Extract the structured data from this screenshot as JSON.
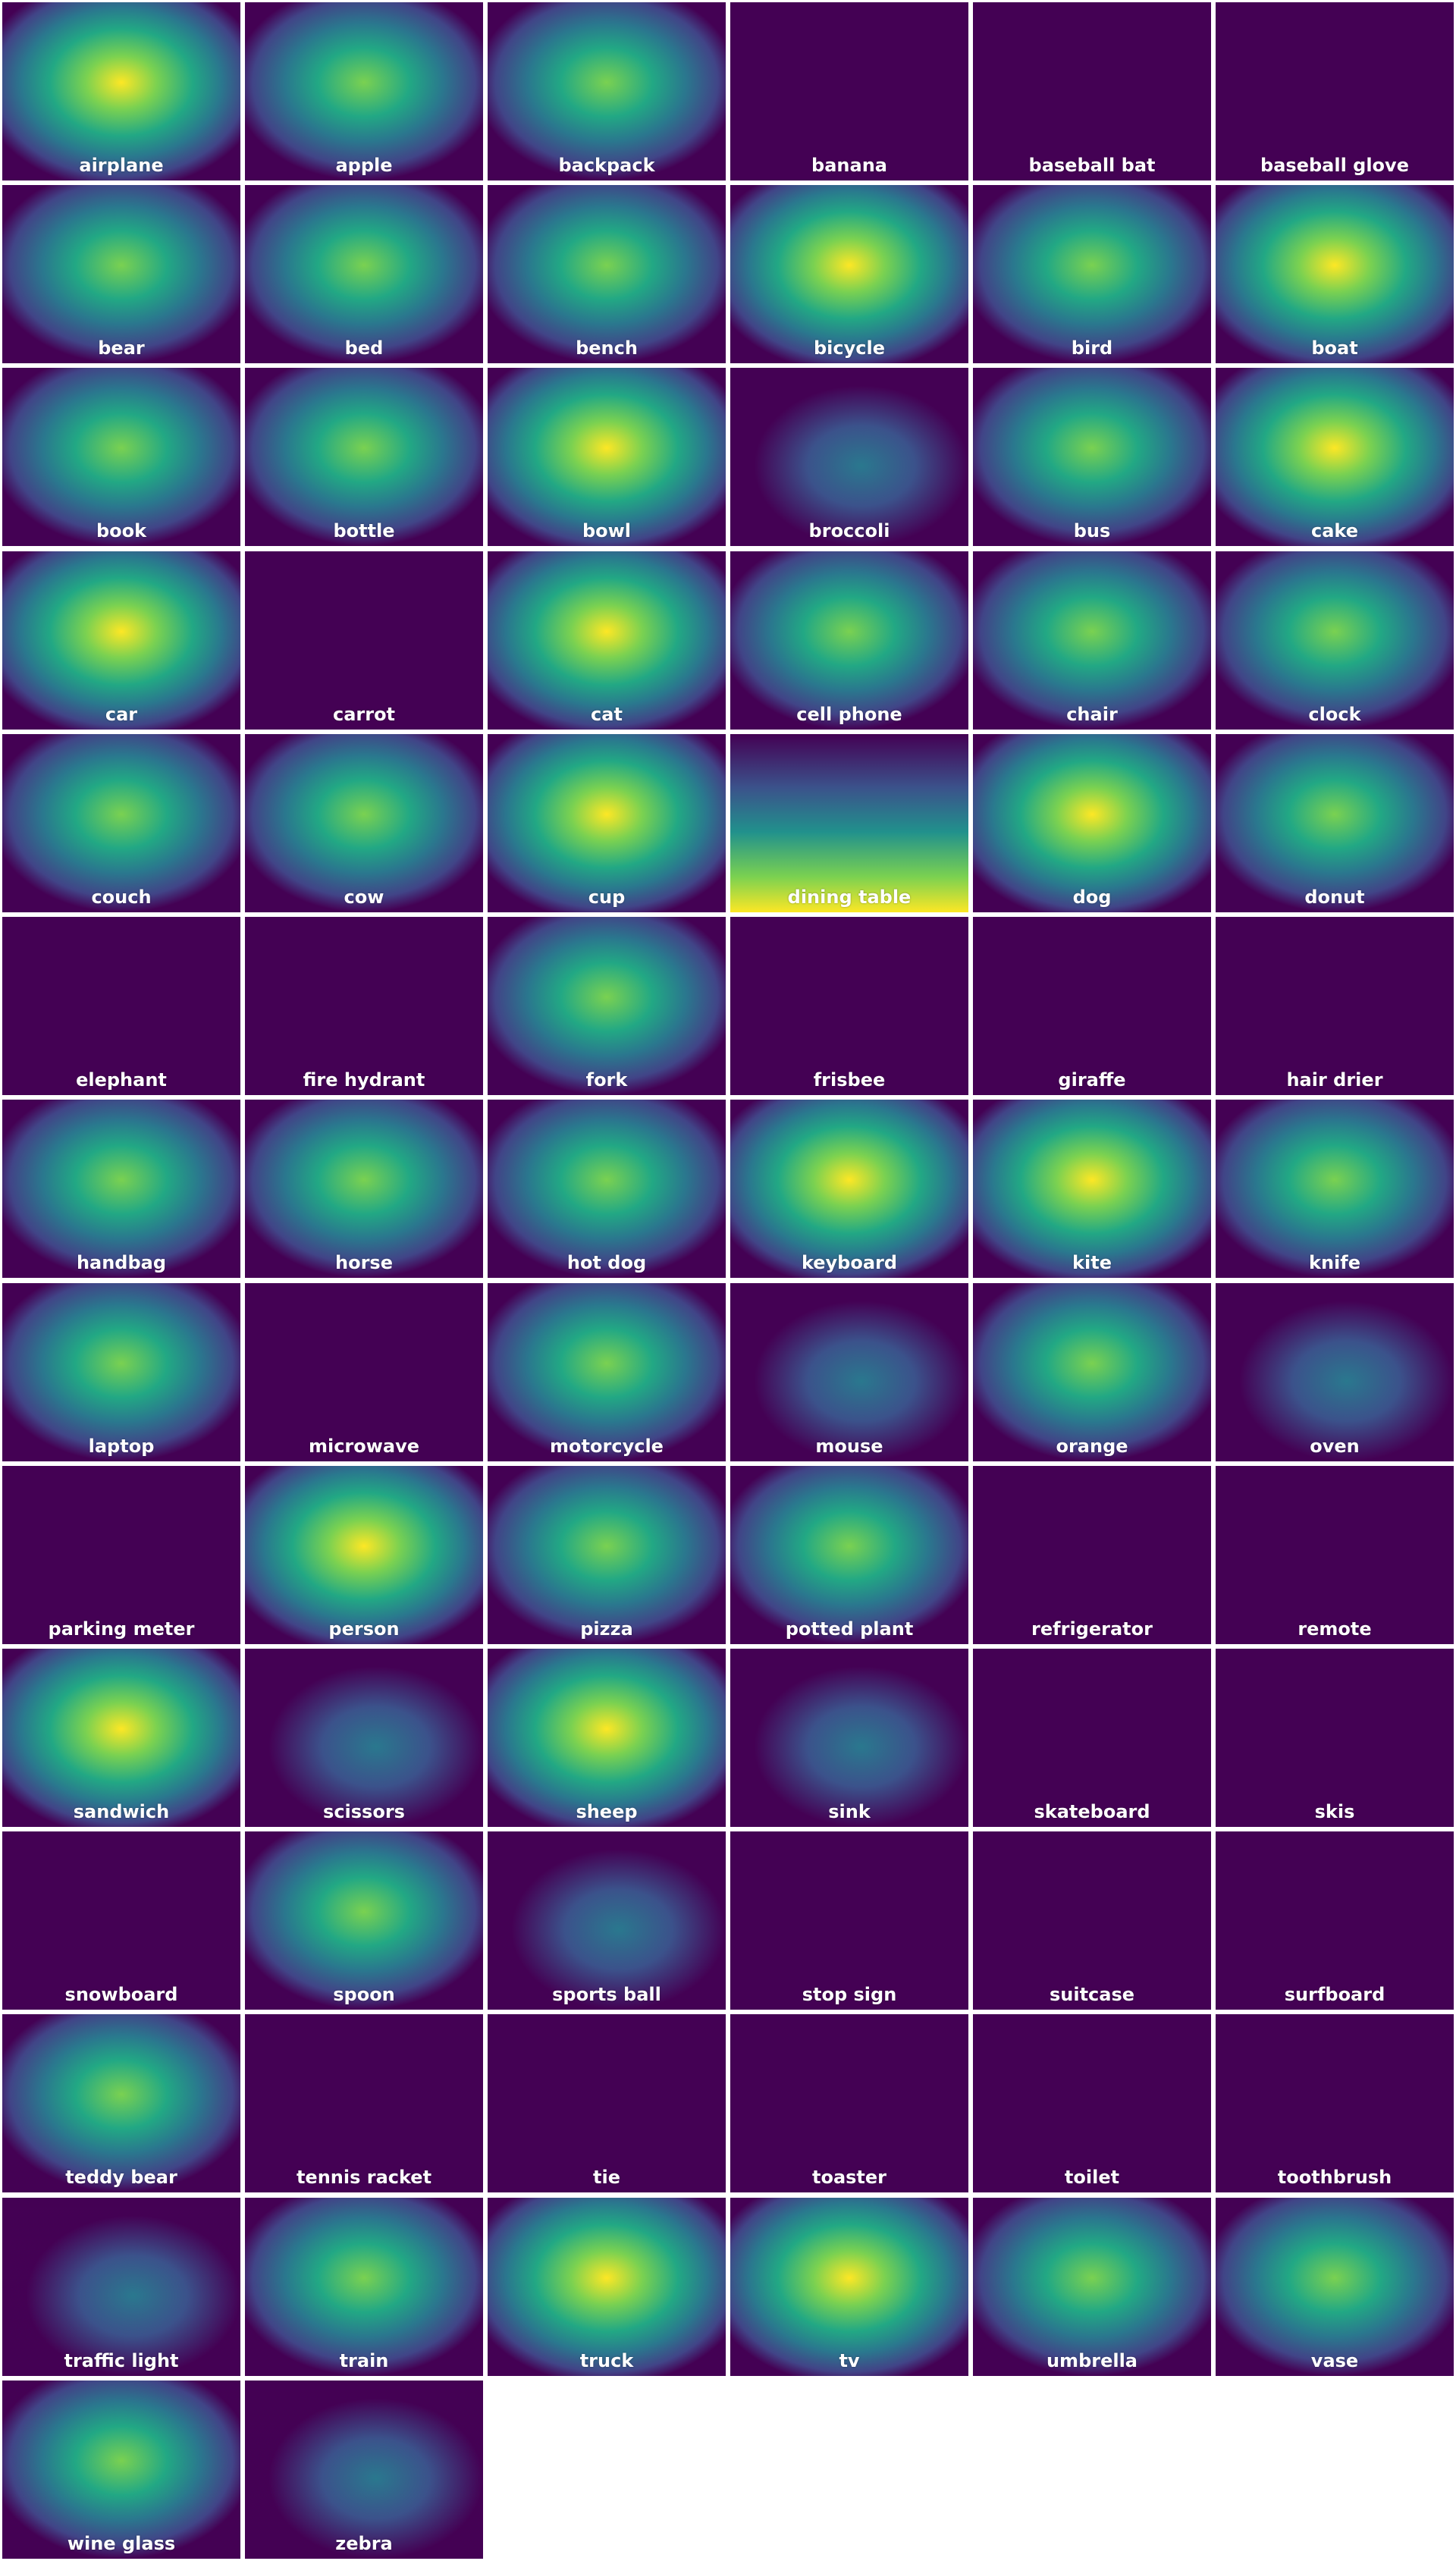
{
  "labels": [
    "airplane",
    "apple",
    "backpack",
    "banana",
    "baseball bat",
    "baseball glove",
    "bear",
    "bed",
    "bench",
    "bicycle",
    "bird",
    "boat",
    "book",
    "bottle",
    "bowl",
    "broccoli",
    "bus",
    "cake",
    "car",
    "carrot",
    "cat",
    "cell phone",
    "chair",
    "clock",
    "couch",
    "cow",
    "cup",
    "dining table",
    "dog",
    "donut",
    "elephant",
    "fire hydrant",
    "fork",
    "frisbee",
    "giraffe",
    "hair drier",
    "handbag",
    "horse",
    "hot dog",
    "keyboard",
    "kite",
    "knife",
    "laptop",
    "microwave",
    "motorcycle",
    "mouse",
    "orange",
    "oven",
    "parking meter",
    "person",
    "pizza",
    "potted plant",
    "refrigerator",
    "remote",
    "sandwich",
    "scissors",
    "sheep",
    "sink",
    "skateboard",
    "skis",
    "snowboard",
    "spoon",
    "sports ball",
    "stop sign",
    "suitcase",
    "surfboard",
    "teddy bear",
    "tennis racket",
    "tie",
    "toaster",
    "toilet",
    "toothbrush",
    "traffic light",
    "train",
    "truck",
    "tv",
    "umbrella",
    "vase",
    "wine glass",
    "zebra"
  ]
}
